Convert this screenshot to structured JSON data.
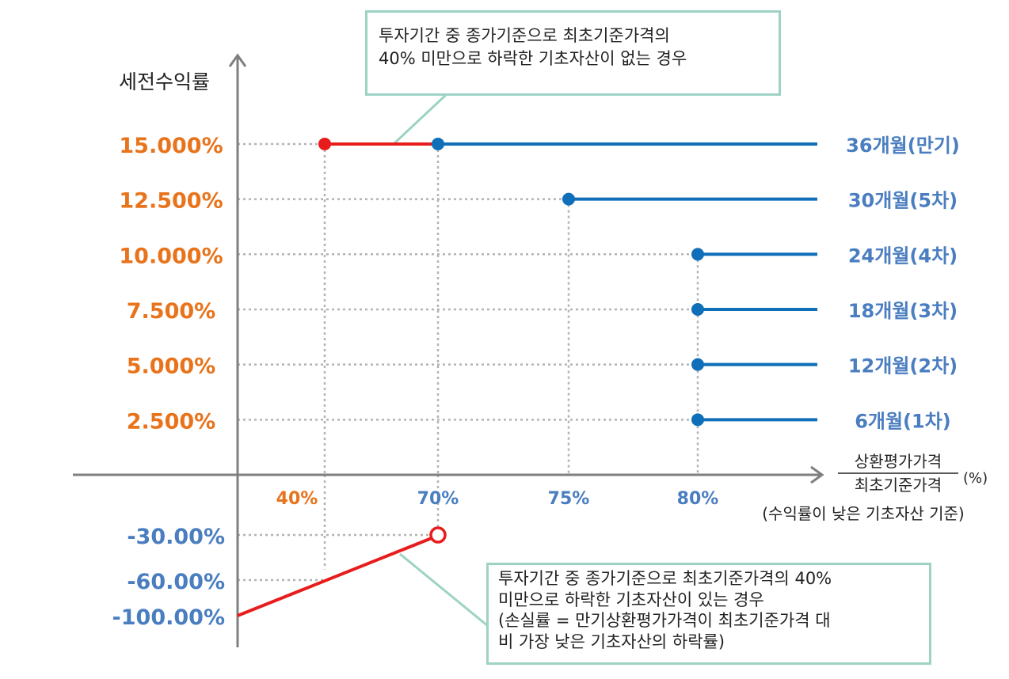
{
  "colors": {
    "axis": "#7f7f7f",
    "grid": "#b3b3b3",
    "red": "#e81c1c",
    "blue": "#0f6fb8",
    "orange": "#e8731b",
    "blue_label": "#4a7ec0",
    "callout_border": "#9dd3c4",
    "text": "#222222"
  },
  "y_axis_title": "세전수익률",
  "x_axis": {
    "title_numerator": "상환평가가격",
    "title_denominator": "최초기준가격",
    "unit": "(%)",
    "note": "(수익률이 낮은 기초자산 기준)",
    "ticks": [
      {
        "label": "40%",
        "value": 40,
        "color": "orange"
      },
      {
        "label": "70%",
        "value": 70,
        "color": "blue"
      },
      {
        "label": "75%",
        "value": 75,
        "color": "blue"
      },
      {
        "label": "80%",
        "value": 80,
        "color": "blue"
      }
    ]
  },
  "y_labels_positive": [
    {
      "label": "15.000%",
      "value": 15.0
    },
    {
      "label": "12.500%",
      "value": 12.5
    },
    {
      "label": "10.000%",
      "value": 10.0
    },
    {
      "label": "7.500%",
      "value": 7.5
    },
    {
      "label": "5.000%",
      "value": 5.0
    },
    {
      "label": "2.500%",
      "value": 2.5
    }
  ],
  "y_labels_negative": [
    {
      "label": "-30.00%",
      "value": -30
    },
    {
      "label": "-60.00%",
      "value": -60
    },
    {
      "label": "-100.00%",
      "value": -100
    }
  ],
  "redemption_lines": [
    {
      "label": "36개월(만기)",
      "return_pct": 15.0,
      "threshold_pct": 70
    },
    {
      "label": "30개월(5차)",
      "return_pct": 12.5,
      "threshold_pct": 75
    },
    {
      "label": "24개월(4차)",
      "return_pct": 10.0,
      "threshold_pct": 80
    },
    {
      "label": "18개월(3차)",
      "return_pct": 7.5,
      "threshold_pct": 80
    },
    {
      "label": "12개월(2차)",
      "return_pct": 5.0,
      "threshold_pct": 80
    },
    {
      "label": "6개월(1차)",
      "return_pct": 2.5,
      "threshold_pct": 80
    }
  ],
  "no_knock_in_segment": {
    "return_pct": 15.0,
    "from_pct": 40,
    "to_pct": 70
  },
  "loss_line": {
    "from_pct": 0,
    "from_return": -100,
    "to_pct": 70,
    "to_return": -30
  },
  "callouts": {
    "top": [
      "투자기간 중 종가기준으로 최초기준가격의",
      "40% 미만으로 하락한 기초자산이 없는 경우"
    ],
    "bottom": [
      "투자기간 중 종가기준으로 최초기준가격의 40%",
      "미만으로 하락한 기초자산이 있는 경우",
      "(손실률 = 만기상환평가가격이 최초기준가격 대",
      "비 가장 낮은 기초자산의 하락률)"
    ]
  }
}
